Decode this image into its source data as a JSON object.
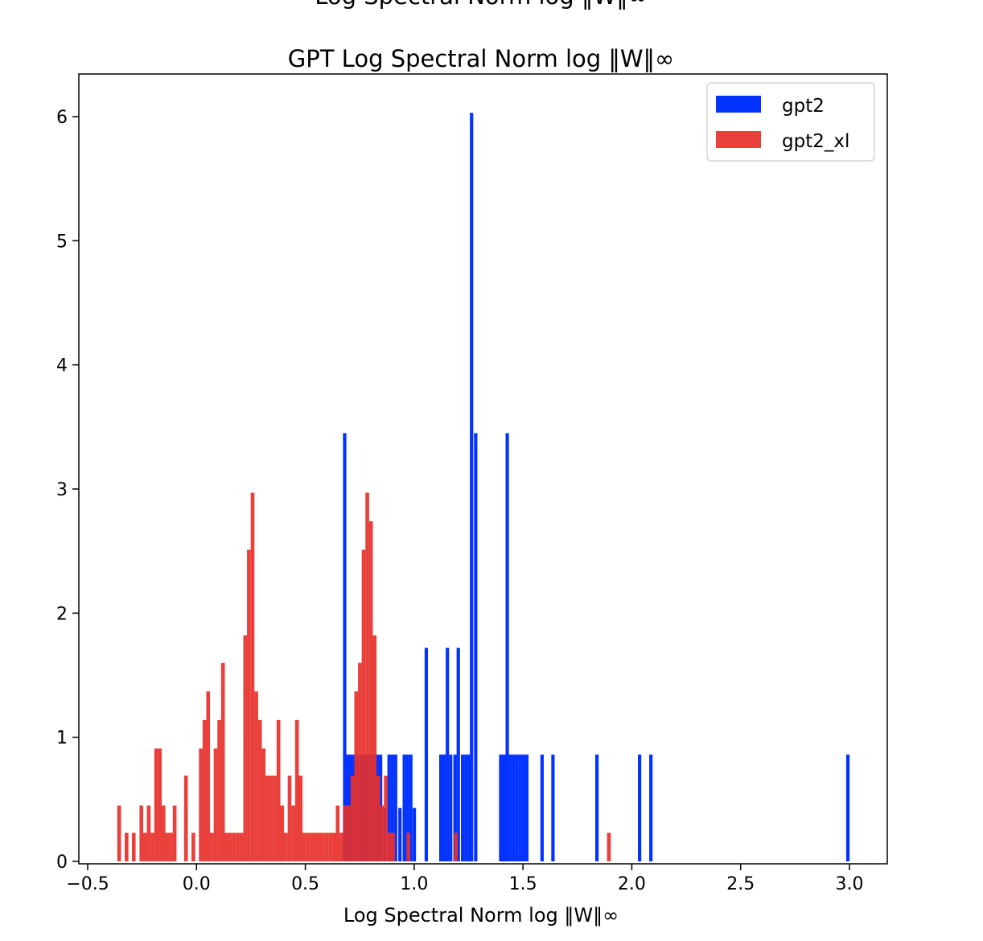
{
  "chart_data": {
    "type": "bar",
    "cropped_header": "Log Spectral Norm log ‖W‖∞",
    "title": "GPT Log Spectral Norm log ‖W‖∞",
    "xlabel": "Log Spectral Norm log ‖W‖∞",
    "ylabel": "",
    "xlim": [
      -0.55,
      3.1
    ],
    "ylim": [
      0,
      6.35
    ],
    "xticks": [
      -0.5,
      0.0,
      0.5,
      1.0,
      1.5,
      2.0,
      2.5,
      3.0
    ],
    "xtick_labels": [
      "−0.5",
      "0.0",
      "0.5",
      "1.0",
      "1.5",
      "2.0",
      "2.5",
      "3.0"
    ],
    "yticks": [
      0,
      1,
      2,
      3,
      4,
      5,
      6
    ],
    "ytick_labels": [
      "0",
      "1",
      "2",
      "3",
      "4",
      "5",
      "6"
    ],
    "grid": false,
    "legend_position": "top-right",
    "series": [
      {
        "name": "gpt2",
        "color": "#0433ff",
        "opacity": 1.0,
        "bin_width": 0.0155,
        "bins": [
          [
            0.673,
            3.45
          ],
          [
            0.688,
            0.86
          ],
          [
            0.703,
            0.86
          ],
          [
            0.718,
            0.86
          ],
          [
            0.733,
            0.86
          ],
          [
            0.748,
            0.86
          ],
          [
            0.763,
            0.86
          ],
          [
            0.778,
            0.86
          ],
          [
            0.793,
            0.86
          ],
          [
            0.808,
            0.86
          ],
          [
            0.823,
            0.86
          ],
          [
            0.838,
            0.86
          ],
          [
            0.857,
            0.43
          ],
          [
            0.877,
            0.86
          ],
          [
            0.892,
            0.86
          ],
          [
            0.907,
            0.86
          ],
          [
            0.927,
            0.43
          ],
          [
            0.947,
            0.86
          ],
          [
            0.962,
            0.86
          ],
          [
            0.977,
            0.86
          ],
          [
            0.993,
            0.43
          ],
          [
            1.048,
            1.72
          ],
          [
            1.115,
            0.86
          ],
          [
            1.13,
            0.86
          ],
          [
            1.145,
            1.72
          ],
          [
            1.16,
            0.86
          ],
          [
            1.18,
            0.86
          ],
          [
            1.195,
            1.72
          ],
          [
            1.215,
            0.86
          ],
          [
            1.23,
            0.86
          ],
          [
            1.245,
            0.86
          ],
          [
            1.256,
            6.03
          ],
          [
            1.275,
            3.45
          ],
          [
            1.39,
            0.86
          ],
          [
            1.405,
            0.86
          ],
          [
            1.42,
            3.45
          ],
          [
            1.435,
            0.86
          ],
          [
            1.45,
            0.86
          ],
          [
            1.465,
            0.86
          ],
          [
            1.48,
            0.86
          ],
          [
            1.495,
            0.86
          ],
          [
            1.51,
            0.86
          ],
          [
            1.58,
            0.86
          ],
          [
            1.63,
            0.86
          ],
          [
            1.832,
            0.86
          ],
          [
            2.028,
            0.86
          ],
          [
            2.08,
            0.86
          ],
          [
            2.985,
            0.86
          ]
        ]
      },
      {
        "name": "gpt2_xl",
        "color": "#e8302a",
        "opacity": 0.92,
        "bin_width": 0.0172,
        "bins": [
          [
            -0.364,
            0.45
          ],
          [
            -0.33,
            0.23
          ],
          [
            -0.297,
            0.23
          ],
          [
            -0.262,
            0.45
          ],
          [
            -0.245,
            0.23
          ],
          [
            -0.228,
            0.45
          ],
          [
            -0.211,
            0.23
          ],
          [
            -0.194,
            0.91
          ],
          [
            -0.177,
            0.91
          ],
          [
            -0.16,
            0.45
          ],
          [
            -0.143,
            0.23
          ],
          [
            -0.126,
            0.23
          ],
          [
            -0.109,
            0.45
          ],
          [
            -0.057,
            0.69
          ],
          [
            -0.023,
            0.23
          ],
          [
            0.011,
            0.91
          ],
          [
            0.028,
            1.14
          ],
          [
            0.045,
            1.37
          ],
          [
            0.062,
            0.23
          ],
          [
            0.079,
            0.91
          ],
          [
            0.096,
            1.14
          ],
          [
            0.113,
            1.6
          ],
          [
            0.13,
            0.23
          ],
          [
            0.147,
            0.23
          ],
          [
            0.164,
            0.23
          ],
          [
            0.181,
            0.23
          ],
          [
            0.198,
            0.23
          ],
          [
            0.215,
            1.82
          ],
          [
            0.232,
            2.51
          ],
          [
            0.249,
            2.97
          ],
          [
            0.266,
            1.37
          ],
          [
            0.283,
            1.14
          ],
          [
            0.3,
            0.91
          ],
          [
            0.317,
            0.69
          ],
          [
            0.334,
            0.69
          ],
          [
            0.351,
            0.69
          ],
          [
            0.368,
            1.14
          ],
          [
            0.385,
            0.45
          ],
          [
            0.402,
            0.23
          ],
          [
            0.419,
            0.69
          ],
          [
            0.436,
            0.45
          ],
          [
            0.453,
            1.14
          ],
          [
            0.47,
            0.69
          ],
          [
            0.487,
            0.23
          ],
          [
            0.504,
            0.23
          ],
          [
            0.521,
            0.23
          ],
          [
            0.538,
            0.23
          ],
          [
            0.555,
            0.23
          ],
          [
            0.572,
            0.23
          ],
          [
            0.589,
            0.23
          ],
          [
            0.606,
            0.23
          ],
          [
            0.623,
            0.23
          ],
          [
            0.64,
            0.45
          ],
          [
            0.657,
            0.23
          ],
          [
            0.674,
            0.45
          ],
          [
            0.691,
            0.45
          ],
          [
            0.708,
            0.69
          ],
          [
            0.725,
            1.37
          ],
          [
            0.742,
            1.6
          ],
          [
            0.759,
            2.51
          ],
          [
            0.776,
            2.97
          ],
          [
            0.793,
            2.74
          ],
          [
            0.81,
            1.82
          ],
          [
            0.827,
            0.69
          ],
          [
            0.844,
            0.45
          ],
          [
            0.861,
            0.69
          ],
          [
            0.878,
            0.23
          ],
          [
            0.895,
            0.23
          ],
          [
            0.965,
            0.23
          ],
          [
            1.183,
            0.23
          ],
          [
            1.886,
            0.23
          ]
        ]
      }
    ]
  }
}
